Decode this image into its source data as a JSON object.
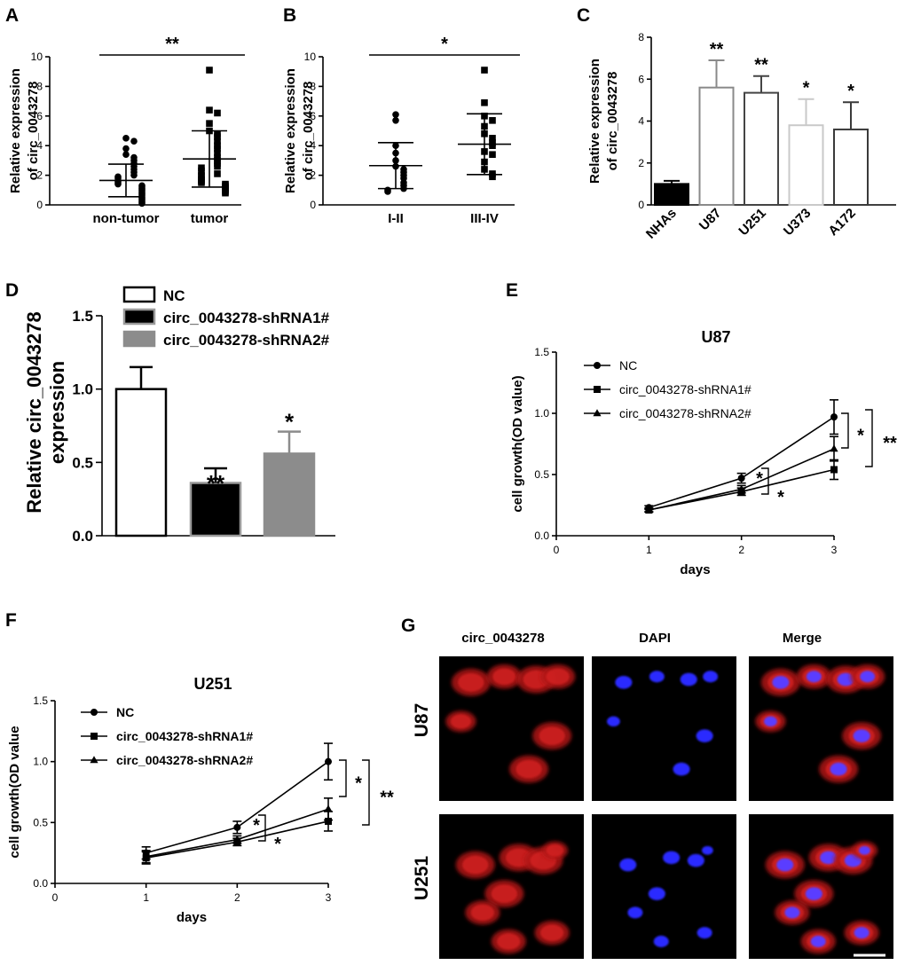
{
  "panels": {
    "A": {
      "letter": "A"
    },
    "B": {
      "letter": "B"
    },
    "C": {
      "letter": "C"
    },
    "D": {
      "letter": "D"
    },
    "E": {
      "letter": "E"
    },
    "F": {
      "letter": "F"
    },
    "G": {
      "letter": "G"
    }
  },
  "colors": {
    "red_stain": "#d42020",
    "blue_stain": "#2a2aff",
    "gray_bar": "#8c8c8c",
    "light_gray_bar": "#c8c8c8"
  },
  "chart_data": [
    {
      "id": "A",
      "type": "scatter",
      "ylabel_line1": "Relative expression",
      "ylabel_line2": "of circ_0043278",
      "ylim": [
        0,
        10
      ],
      "yticks": [
        "0",
        "2",
        "4",
        "6",
        "8",
        "10"
      ],
      "categories": [
        "non-tumor",
        "tumor"
      ],
      "groups": [
        {
          "label": "non-tumor",
          "marker": "circle",
          "mean": 1.65,
          "sd": 1.1,
          "values": [
            4.5,
            4.3,
            3.8,
            3.4,
            3.2,
            3.0,
            2.8,
            2.6,
            2.4,
            2.2,
            2.0,
            1.9,
            1.8,
            1.6,
            1.5,
            1.4,
            1.3,
            1.2,
            1.1,
            1.0,
            0.9,
            0.8,
            0.7,
            0.6,
            0.5,
            0.4,
            0.3,
            0.2,
            0.1
          ]
        },
        {
          "label": "tumor",
          "marker": "square",
          "mean": 3.1,
          "sd": 1.9,
          "values": [
            9.1,
            6.4,
            6.2,
            5.5,
            5.0,
            4.8,
            4.6,
            4.3,
            4.0,
            3.8,
            3.5,
            3.2,
            3.0,
            2.8,
            2.6,
            2.5,
            2.3,
            2.1,
            2.0,
            1.9,
            1.7,
            1.6,
            1.5,
            1.4,
            1.3,
            1.2,
            1.1,
            1.0,
            0.9,
            0.8
          ]
        }
      ],
      "significance": "**"
    },
    {
      "id": "B",
      "type": "scatter",
      "ylabel_line1": "Relative expression",
      "ylabel_line2": "of circ_0043278",
      "ylim": [
        0,
        10
      ],
      "yticks": [
        "0",
        "2",
        "4",
        "6",
        "8",
        "10"
      ],
      "categories": [
        "I-II",
        "III-IV"
      ],
      "groups": [
        {
          "label": "I-II",
          "marker": "circle",
          "mean": 2.65,
          "sd": 1.55,
          "values": [
            6.1,
            5.7,
            4.0,
            3.5,
            3.0,
            2.6,
            2.4,
            2.2,
            2.0,
            1.8,
            1.5,
            1.3,
            1.1,
            1.0,
            0.9
          ]
        },
        {
          "label": "III-IV",
          "marker": "square",
          "mean": 4.1,
          "sd": 2.05,
          "values": [
            9.1,
            6.9,
            6.0,
            5.7,
            5.3,
            4.8,
            4.5,
            4.2,
            4.0,
            3.6,
            3.4,
            2.9,
            2.4,
            2.1,
            1.9
          ]
        }
      ],
      "significance": "*"
    },
    {
      "id": "C",
      "type": "bar",
      "ylabel_line1": "Relative expression",
      "ylabel_line2": "of circ_0043278",
      "ylim": [
        0,
        8
      ],
      "yticks": [
        "0",
        "2",
        "4",
        "6",
        "8"
      ],
      "categories": [
        "NHAs",
        "U87",
        "U251",
        "U373",
        "A172"
      ],
      "values": [
        1.0,
        5.6,
        5.35,
        3.8,
        3.6
      ],
      "errors": [
        0.15,
        1.3,
        0.8,
        1.25,
        1.3
      ],
      "significance": [
        "",
        "**",
        "**",
        "*",
        "*"
      ]
    },
    {
      "id": "D",
      "type": "bar",
      "ylabel_line1": "Relative circ_0043278",
      "ylabel_line2": "expression",
      "ylim": [
        0,
        1.5
      ],
      "yticks": [
        "0.0",
        "0.5",
        "1.0",
        "1.5"
      ],
      "series": [
        {
          "name": "NC",
          "value": 1.0,
          "error": 0.15,
          "sig": ""
        },
        {
          "name": "circ_0043278-shRNA1#",
          "value": 0.36,
          "error": 0.1,
          "sig": "**"
        },
        {
          "name": "circ_0043278-shRNA2#",
          "value": 0.56,
          "error": 0.15,
          "sig": "*"
        }
      ]
    },
    {
      "id": "E",
      "type": "line",
      "title": "U87",
      "xlabel": "days",
      "ylabel": "cell growth(OD value)",
      "xlim": [
        0,
        3
      ],
      "xticks": [
        "0",
        "1",
        "2",
        "3"
      ],
      "ylim": [
        0,
        1.5
      ],
      "yticks": [
        "0.0",
        "0.5",
        "1.0",
        "1.5"
      ],
      "x": [
        1,
        2,
        3
      ],
      "series": [
        {
          "name": "NC",
          "marker": "circle",
          "values": [
            0.23,
            0.47,
            0.97
          ],
          "errors": [
            0.015,
            0.04,
            0.14
          ]
        },
        {
          "name": "circ_0043278-shRNA1#",
          "marker": "square",
          "values": [
            0.21,
            0.36,
            0.54
          ],
          "errors": [
            0.015,
            0.03,
            0.08
          ]
        },
        {
          "name": "circ_0043278-shRNA2#",
          "marker": "triangle",
          "values": [
            0.21,
            0.38,
            0.71
          ],
          "errors": [
            0.015,
            0.03,
            0.1
          ]
        }
      ],
      "sig_near": [
        "*",
        "*"
      ],
      "sig_far": [
        "*",
        "**"
      ]
    },
    {
      "id": "F",
      "type": "line",
      "title": "U251",
      "xlabel": "days",
      "ylabel": "cell growth(OD value",
      "xlim": [
        0,
        3
      ],
      "xticks": [
        "0",
        "1",
        "2",
        "3"
      ],
      "ylim": [
        0,
        1.5
      ],
      "yticks": [
        "0.0",
        "0.5",
        "1.0",
        "1.5"
      ],
      "x": [
        1,
        2,
        3
      ],
      "series": [
        {
          "name": "NC",
          "marker": "circle",
          "values": [
            0.25,
            0.46,
            1.0
          ],
          "errors": [
            0.05,
            0.05,
            0.15
          ]
        },
        {
          "name": "circ_0043278-shRNA1#",
          "marker": "square",
          "values": [
            0.21,
            0.34,
            0.51
          ],
          "errors": [
            0.05,
            0.03,
            0.08
          ]
        },
        {
          "name": "circ_0043278-shRNA2#",
          "marker": "triangle",
          "values": [
            0.22,
            0.36,
            0.61
          ],
          "errors": [
            0.05,
            0.03,
            0.09
          ]
        }
      ],
      "sig_near": [
        "*",
        "*"
      ],
      "sig_far": [
        "*",
        "**"
      ]
    }
  ],
  "micrographs": {
    "columns": [
      "circ_0043278",
      "DAPI",
      "Merge"
    ],
    "rows": [
      "U87",
      "U251"
    ]
  }
}
